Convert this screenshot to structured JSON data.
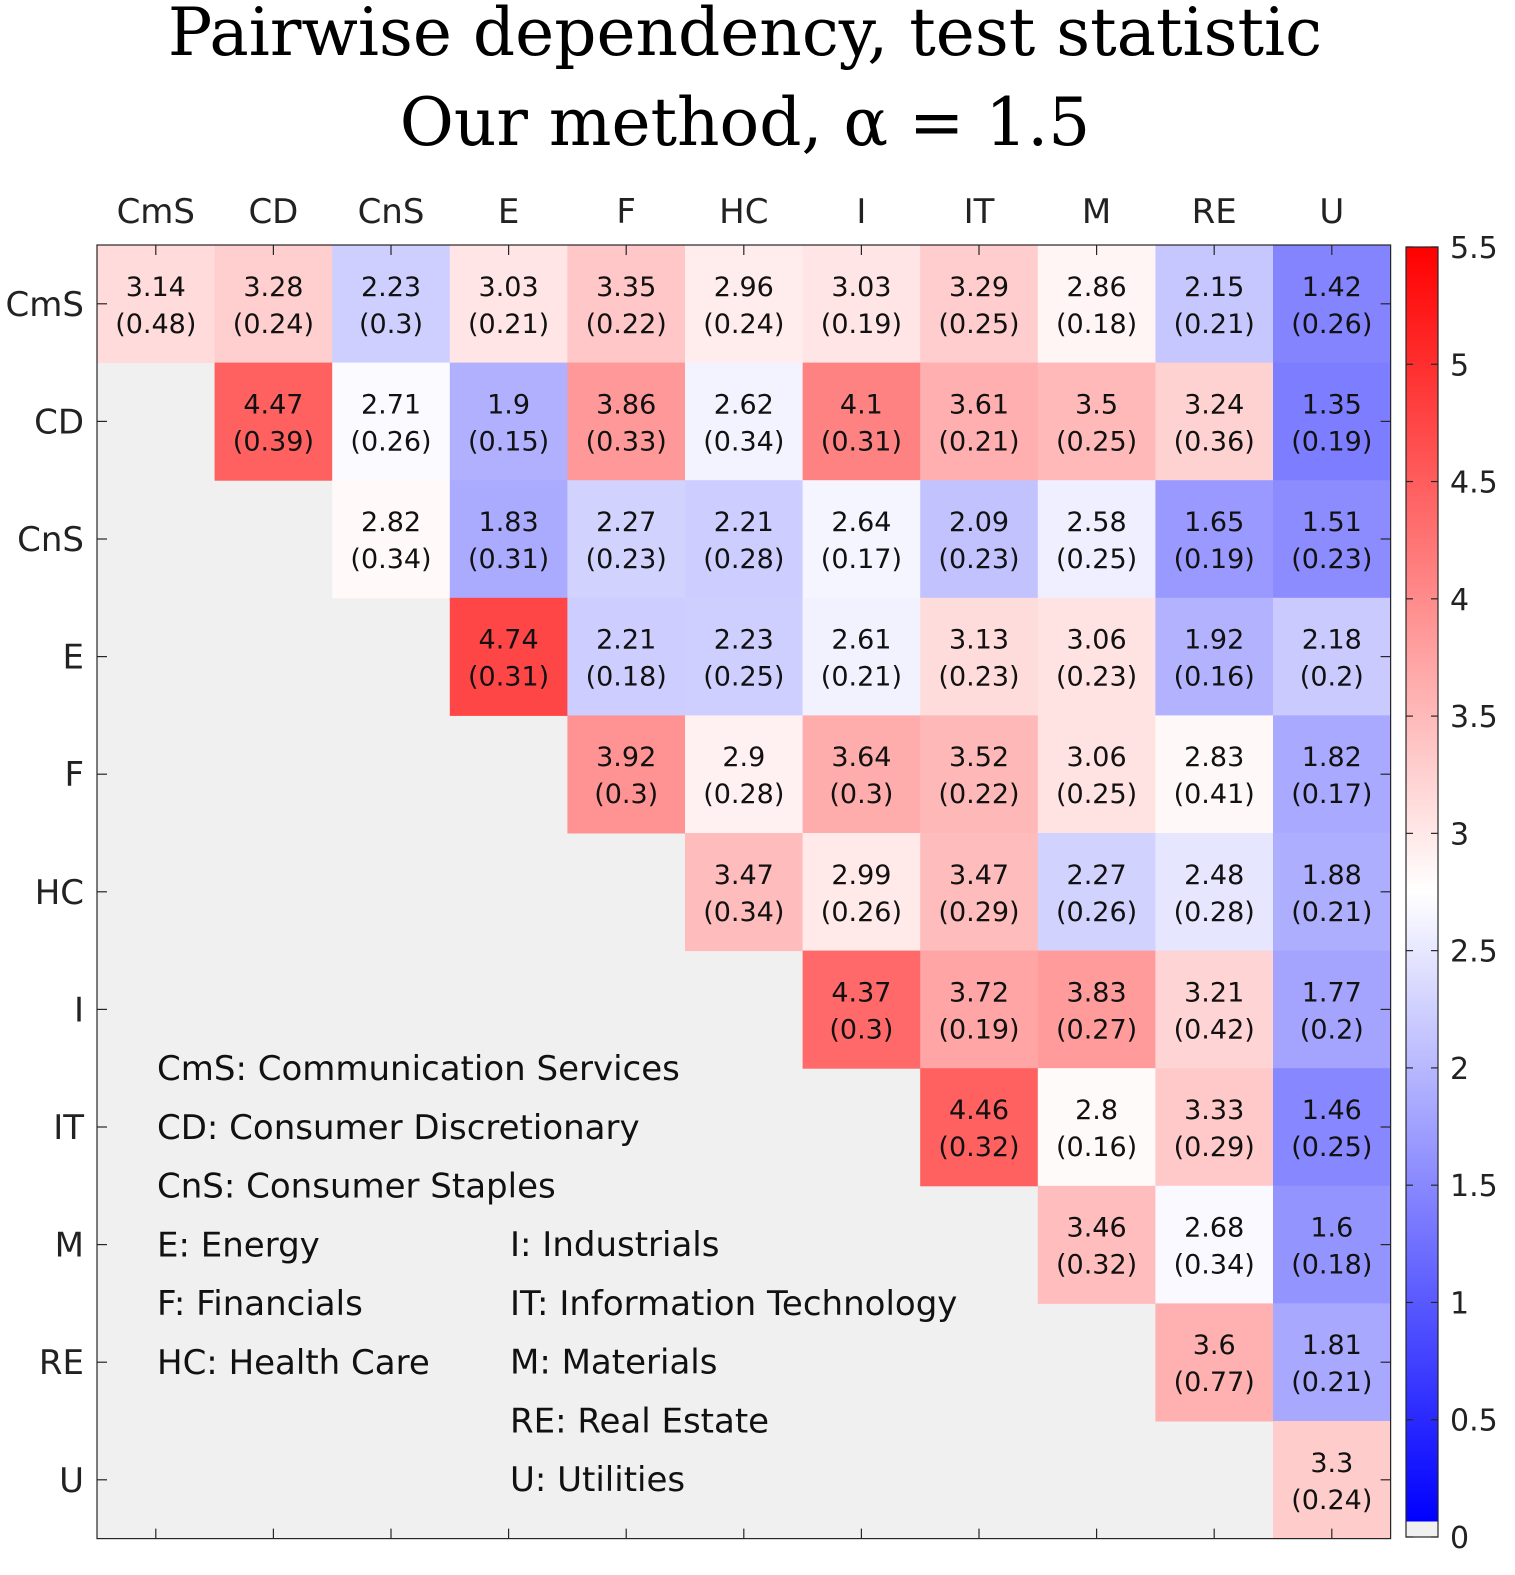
{
  "chart_data": {
    "type": "heatmap",
    "title": "Pairwise dependency, test statistic",
    "subtitle": "Our method, α = 1.5",
    "labels": [
      "CmS",
      "CD",
      "CnS",
      "E",
      "F",
      "HC",
      "I",
      "IT",
      "M",
      "RE",
      "U"
    ],
    "values": [
      [
        3.14,
        3.28,
        2.23,
        3.03,
        3.35,
        2.96,
        3.03,
        3.29,
        2.86,
        2.15,
        1.42
      ],
      [
        null,
        4.47,
        2.71,
        1.9,
        3.86,
        2.62,
        4.1,
        3.61,
        3.5,
        3.24,
        1.35
      ],
      [
        null,
        null,
        2.82,
        1.83,
        2.27,
        2.21,
        2.64,
        2.09,
        2.58,
        1.65,
        1.51
      ],
      [
        null,
        null,
        null,
        4.74,
        2.21,
        2.23,
        2.61,
        3.13,
        3.06,
        1.92,
        2.18
      ],
      [
        null,
        null,
        null,
        null,
        3.92,
        2.9,
        3.64,
        3.52,
        3.06,
        2.83,
        1.82
      ],
      [
        null,
        null,
        null,
        null,
        null,
        3.47,
        2.99,
        3.47,
        2.27,
        2.48,
        1.88
      ],
      [
        null,
        null,
        null,
        null,
        null,
        null,
        4.37,
        3.72,
        3.83,
        3.21,
        1.77
      ],
      [
        null,
        null,
        null,
        null,
        null,
        null,
        null,
        4.46,
        2.8,
        3.33,
        1.46
      ],
      [
        null,
        null,
        null,
        null,
        null,
        null,
        null,
        null,
        3.46,
        2.68,
        1.6
      ],
      [
        null,
        null,
        null,
        null,
        null,
        null,
        null,
        null,
        null,
        3.6,
        1.81
      ],
      [
        null,
        null,
        null,
        null,
        null,
        null,
        null,
        null,
        null,
        null,
        3.3
      ]
    ],
    "errors": [
      [
        "(0.48)",
        "(0.24)",
        "(0.3)",
        "(0.21)",
        "(0.22)",
        "(0.24)",
        "(0.19)",
        "(0.25)",
        "(0.18)",
        "(0.21)",
        "(0.26)"
      ],
      [
        null,
        "(0.39)",
        "(0.26)",
        "(0.15)",
        "(0.33)",
        "(0.34)",
        "(0.31)",
        "(0.21)",
        "(0.25)",
        "(0.36)",
        "(0.19)"
      ],
      [
        null,
        null,
        "(0.34)",
        "(0.31)",
        "(0.23)",
        "(0.28)",
        "(0.17)",
        "(0.23)",
        "(0.25)",
        "(0.19)",
        "(0.23)"
      ],
      [
        null,
        null,
        null,
        "(0.31)",
        "(0.18)",
        "(0.25)",
        "(0.21)",
        "(0.23)",
        "(0.23)",
        "(0.16)",
        "(0.2)"
      ],
      [
        null,
        null,
        null,
        null,
        "(0.3)",
        "(0.28)",
        "(0.3)",
        "(0.22)",
        "(0.25)",
        "(0.41)",
        "(0.17)"
      ],
      [
        null,
        null,
        null,
        null,
        null,
        "(0.34)",
        "(0.26)",
        "(0.29)",
        "(0.26)",
        "(0.28)",
        "(0.21)"
      ],
      [
        null,
        null,
        null,
        null,
        null,
        null,
        "(0.3)",
        "(0.19)",
        "(0.27)",
        "(0.42)",
        "(0.2)"
      ],
      [
        null,
        null,
        null,
        null,
        null,
        null,
        null,
        "(0.32)",
        "(0.16)",
        "(0.29)",
        "(0.25)"
      ],
      [
        null,
        null,
        null,
        null,
        null,
        null,
        null,
        null,
        "(0.32)",
        "(0.34)",
        "(0.18)"
      ],
      [
        null,
        null,
        null,
        null,
        null,
        null,
        null,
        null,
        null,
        "(0.77)",
        "(0.21)"
      ],
      [
        null,
        null,
        null,
        null,
        null,
        null,
        null,
        null,
        null,
        null,
        "(0.24)"
      ]
    ],
    "legend": [
      "CmS: Communication Services",
      "CD: Consumer Discretionary",
      "CnS: Consumer Staples",
      "E: Energy",
      "F: Financials",
      "HC: Health Care",
      "I: Industrials",
      "IT: Information Technology",
      "M: Materials",
      "RE: Real Estate",
      "U: Utilities"
    ],
    "colorbar": {
      "range": [
        0,
        5.5
      ],
      "ticks": [
        "0",
        "0.5",
        "1",
        "1.5",
        "2",
        "2.5",
        "3",
        "3.5",
        "4",
        "4.5",
        "5",
        "5.5"
      ],
      "low_color": "#0000ff",
      "mid_value": 2.75,
      "mid_color": "#ffffff",
      "high_color": "#ff0000",
      "empty_color": "#f0f0f0"
    }
  }
}
